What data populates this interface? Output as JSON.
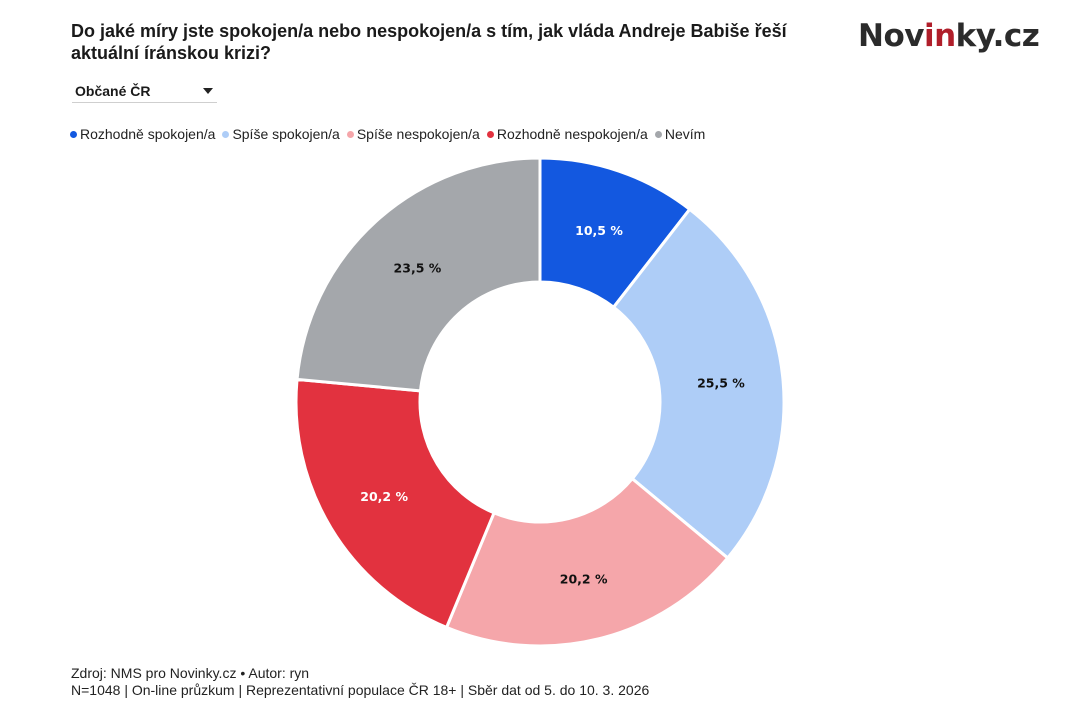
{
  "header": {
    "title": "Do jaké míry jste spokojen/a nebo nespokojen/a s tím, jak vláda Andreje Babiše řeší aktuální íránskou krizi?",
    "logo_prefix": "Nov",
    "logo_accent": "in",
    "logo_suffix": "ky.cz",
    "logo_accent_color": "#b01e2a"
  },
  "filter": {
    "selected": "Občané ČR",
    "icon": "chevron-down-icon"
  },
  "chart_data": {
    "type": "pie",
    "variant": "donut",
    "title": "Do jaké míry jste spokojen/a nebo nespokojen/a s tím, jak vláda Andreje Babiše řeší aktuální íránskou krizi?",
    "legend_position": "top-left",
    "categories": [
      "Rozhodně spokojen/a",
      "Spíše spokojen/a",
      "Spíše nespokojen/a",
      "Rozhodně nespokojen/a",
      "Nevím"
    ],
    "values": [
      10.5,
      25.5,
      20.2,
      20.2,
      23.5
    ],
    "labels": [
      "10,5 %",
      "25,5 %",
      "20,2 %",
      "20,2 %",
      "23,5 %"
    ],
    "colors": [
      "#1358e0",
      "#aecdf7",
      "#f5a6aa",
      "#e2323f",
      "#a4a7ab"
    ],
    "label_colors": [
      "#ffffff",
      "#111111",
      "#111111",
      "#ffffff",
      "#111111"
    ],
    "unit": "%"
  },
  "footer": {
    "line1": "Zdroj: NMS pro Novinky.cz • Autor: ryn",
    "line2": "N=1048 | On-line průzkum | Reprezentativní populace ČR 18+ | Sběr dat od 5. do 10. 3. 2026"
  }
}
